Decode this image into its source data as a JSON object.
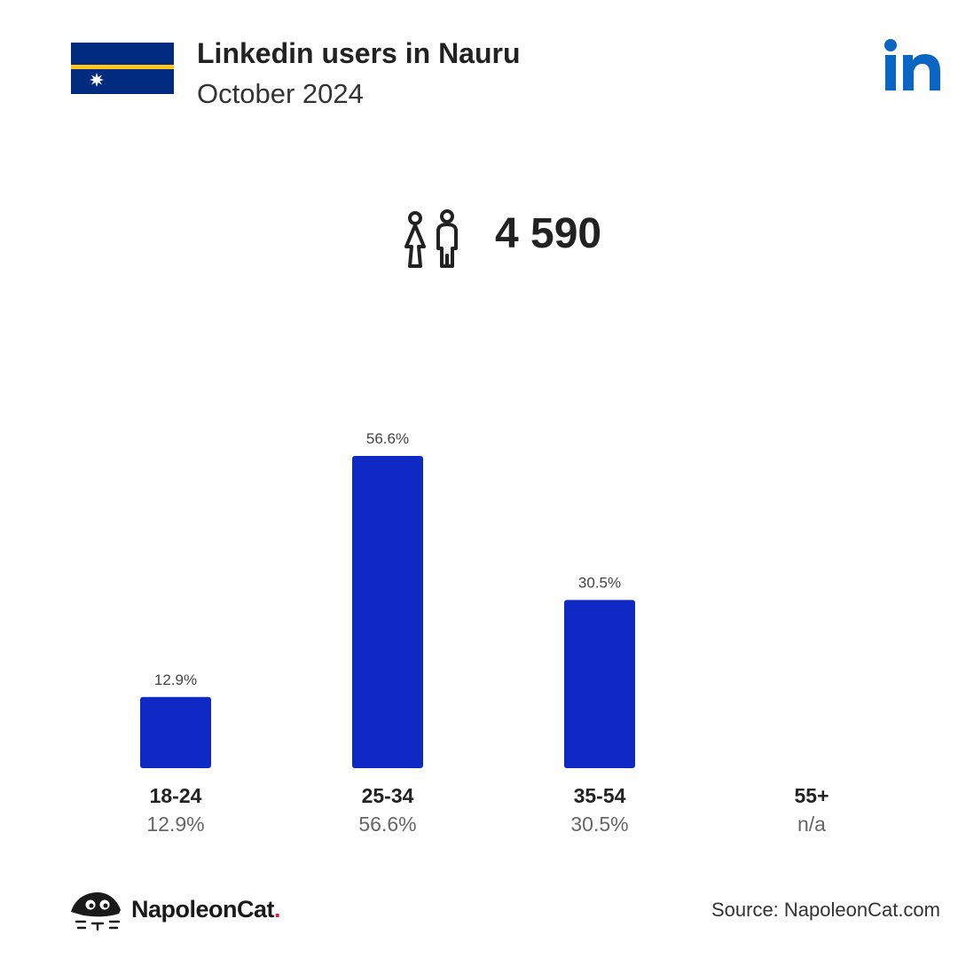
{
  "header": {
    "title": "Linkedin users in Nauru",
    "subtitle": "October 2024"
  },
  "icons": {
    "flag": "nauru-flag-icon",
    "brand": "linkedin-logo-icon",
    "users": "users-icon",
    "footer": "napoleoncat-logo-icon"
  },
  "summary": {
    "total_users": "4 590"
  },
  "colors": {
    "bar": "#0f2ac4",
    "linkedin": "#0a66c2",
    "flag_blue": "#002b7f",
    "flag_yellow": "#ffc61e"
  },
  "chart_data": {
    "type": "bar",
    "categories": [
      "18-24",
      "25-34",
      "35-54",
      "55+"
    ],
    "values": [
      12.9,
      56.6,
      30.5,
      null
    ],
    "bar_labels": [
      "12.9%",
      "56.6%",
      "30.5%",
      ""
    ],
    "category_values": [
      "12.9%",
      "56.6%",
      "30.5%",
      "n/a"
    ],
    "ylim": [
      0,
      56.6
    ],
    "grid": false
  },
  "footer": {
    "brand_name": "NapoleonCat",
    "brand_dot": ".",
    "source": "Source: NapoleonCat.com"
  }
}
